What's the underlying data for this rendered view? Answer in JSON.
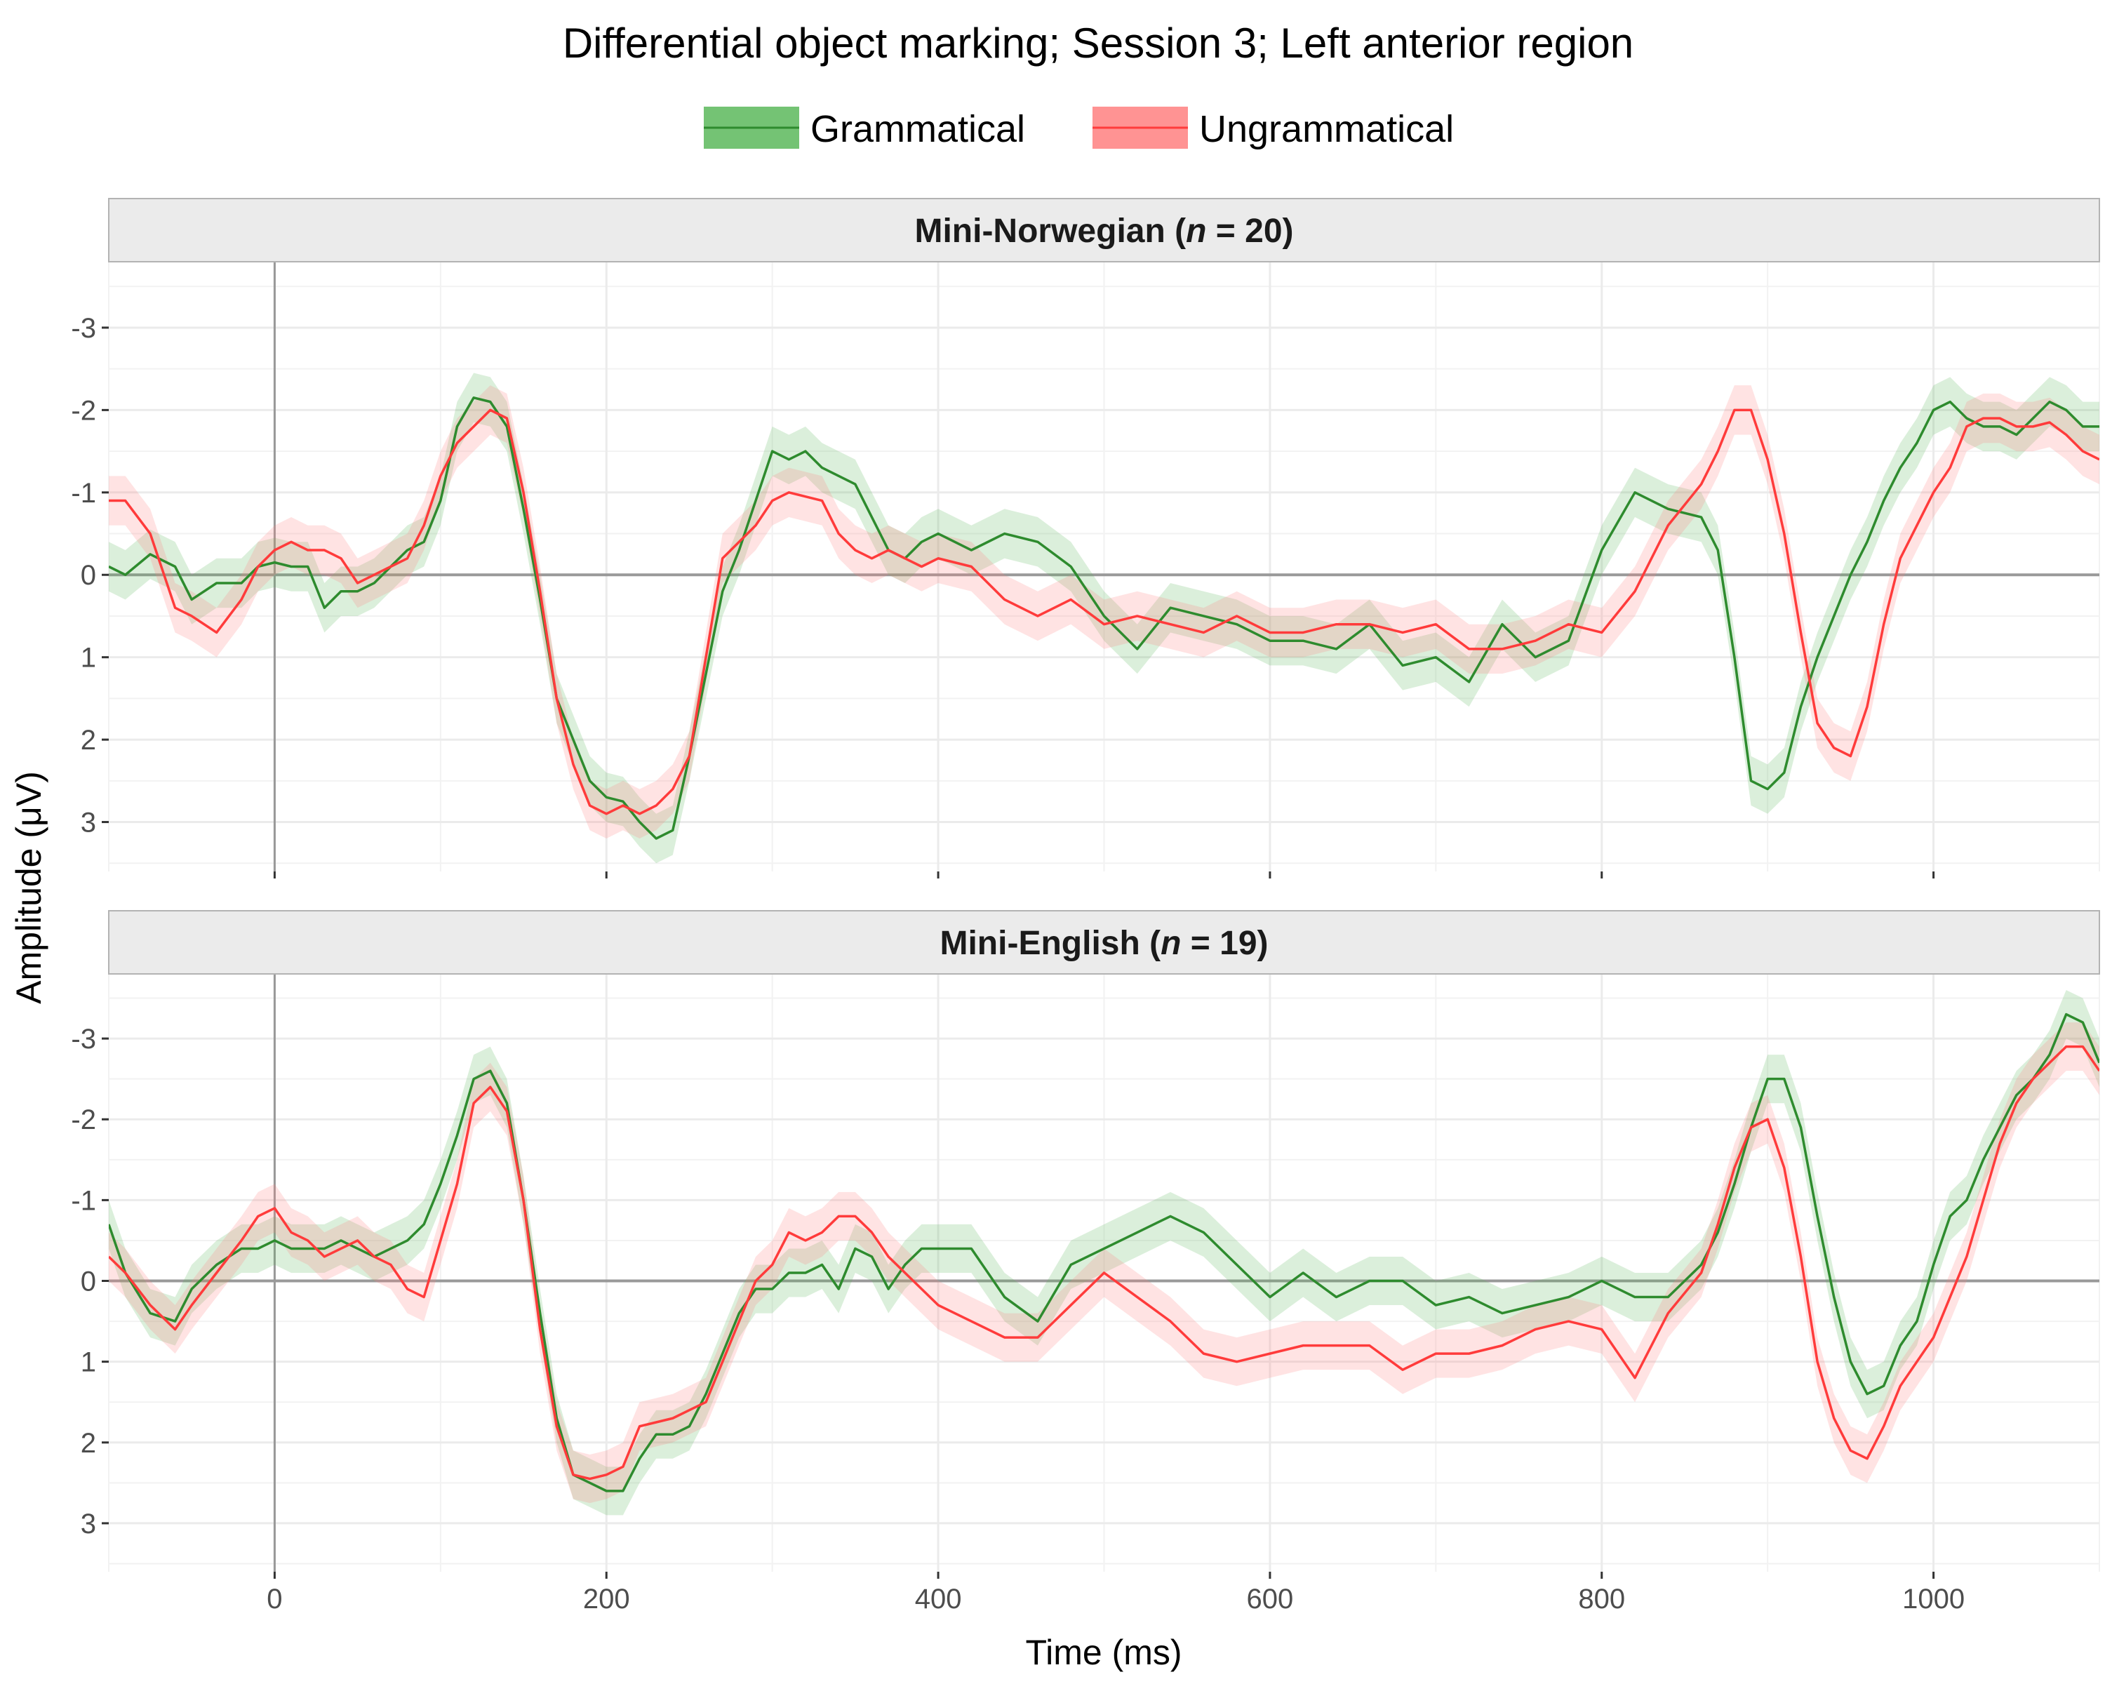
{
  "chart_data": {
    "type": "line",
    "title": "Differential object marking; Session 3; Left anterior region",
    "xlabel": "Time (ms)",
    "ylabel": "Amplitude (μV)",
    "y_reversed": true,
    "xlim": [
      -100,
      1100
    ],
    "ylim": [
      -3.8,
      3.6
    ],
    "x_ticks": [
      0,
      200,
      400,
      600,
      800,
      1000
    ],
    "x_tick_labels": [
      "0",
      "200",
      "400",
      "600",
      "800",
      "1000"
    ],
    "y_ticks": [
      -3,
      -2,
      -1,
      0,
      1,
      2,
      3
    ],
    "y_tick_labels": [
      "-3",
      "-2",
      "-1",
      "0",
      "1",
      "2",
      "3"
    ],
    "grid": true,
    "legend_position": "top",
    "legend": [
      {
        "label": "Grammatical",
        "color": "#2e8b2e",
        "ribbon_color": "#5cb85c"
      },
      {
        "label": "Ungrammatical",
        "color": "#ff3b3b",
        "ribbon_color": "#ff8080"
      }
    ],
    "panels": [
      {
        "title_before": "Mini-Norwegian (",
        "title_n": "n",
        "title_after": " = 20)",
        "series": [
          {
            "name": "Grammatical",
            "ribbon_halfwidth": 0.3,
            "x": [
              -100,
              -90,
              -75,
              -60,
              -50,
              -35,
              -20,
              -10,
              0,
              10,
              20,
              30,
              40,
              50,
              60,
              70,
              80,
              90,
              100,
              110,
              120,
              130,
              140,
              150,
              160,
              170,
              180,
              190,
              200,
              210,
              220,
              230,
              240,
              250,
              260,
              270,
              280,
              290,
              300,
              310,
              320,
              330,
              340,
              350,
              360,
              370,
              380,
              390,
              400,
              420,
              440,
              460,
              480,
              500,
              520,
              540,
              560,
              580,
              600,
              620,
              640,
              660,
              680,
              700,
              720,
              740,
              760,
              780,
              800,
              820,
              840,
              860,
              870,
              880,
              890,
              900,
              910,
              920,
              930,
              940,
              950,
              960,
              970,
              980,
              990,
              1000,
              1010,
              1020,
              1030,
              1040,
              1050,
              1060,
              1070,
              1080,
              1090,
              1100
            ],
            "y": [
              -0.1,
              0,
              -0.25,
              -0.1,
              0.3,
              0.1,
              0.1,
              -0.1,
              -0.15,
              -0.1,
              -0.1,
              0.4,
              0.2,
              0.2,
              0.1,
              -0.1,
              -0.3,
              -0.4,
              -0.9,
              -1.8,
              -2.15,
              -2.1,
              -1.8,
              -0.8,
              0.3,
              1.5,
              2.0,
              2.5,
              2.7,
              2.75,
              3.0,
              3.2,
              3.1,
              2.2,
              1.2,
              0.2,
              -0.3,
              -0.9,
              -1.5,
              -1.4,
              -1.5,
              -1.3,
              -1.2,
              -1.1,
              -0.7,
              -0.3,
              -0.2,
              -0.4,
              -0.5,
              -0.3,
              -0.5,
              -0.4,
              -0.1,
              0.5,
              0.9,
              0.4,
              0.5,
              0.6,
              0.8,
              0.8,
              0.9,
              0.6,
              1.1,
              1.0,
              1.3,
              0.6,
              1.0,
              0.8,
              -0.3,
              -1.0,
              -0.8,
              -0.7,
              -0.3,
              1.0,
              2.5,
              2.6,
              2.4,
              1.6,
              1.0,
              0.5,
              0,
              -0.4,
              -0.9,
              -1.3,
              -1.6,
              -2.0,
              -2.1,
              -1.9,
              -1.8,
              -1.8,
              -1.7,
              -1.9,
              -2.1,
              -2.0,
              -1.8,
              -1.8
            ]
          },
          {
            "name": "Ungrammatical",
            "ribbon_halfwidth": 0.3,
            "x": [
              -100,
              -90,
              -75,
              -60,
              -50,
              -35,
              -20,
              -10,
              0,
              10,
              20,
              30,
              40,
              50,
              60,
              70,
              80,
              90,
              100,
              110,
              120,
              130,
              140,
              150,
              160,
              170,
              180,
              190,
              200,
              210,
              220,
              230,
              240,
              250,
              260,
              270,
              280,
              290,
              300,
              310,
              320,
              330,
              340,
              350,
              360,
              370,
              380,
              390,
              400,
              420,
              440,
              460,
              480,
              500,
              520,
              540,
              560,
              580,
              600,
              620,
              640,
              660,
              680,
              700,
              720,
              740,
              760,
              780,
              800,
              820,
              840,
              860,
              870,
              880,
              890,
              900,
              910,
              920,
              930,
              940,
              950,
              960,
              970,
              980,
              990,
              1000,
              1010,
              1020,
              1030,
              1040,
              1050,
              1060,
              1070,
              1080,
              1090,
              1100
            ],
            "y": [
              -0.9,
              -0.9,
              -0.5,
              0.4,
              0.5,
              0.7,
              0.3,
              -0.1,
              -0.3,
              -0.4,
              -0.3,
              -0.3,
              -0.2,
              0.1,
              0,
              -0.1,
              -0.2,
              -0.6,
              -1.2,
              -1.6,
              -1.8,
              -2.0,
              -1.9,
              -1.0,
              0.2,
              1.5,
              2.3,
              2.8,
              2.9,
              2.8,
              2.9,
              2.8,
              2.6,
              2.2,
              1.0,
              -0.2,
              -0.4,
              -0.6,
              -0.9,
              -1.0,
              -0.95,
              -0.9,
              -0.5,
              -0.3,
              -0.2,
              -0.3,
              -0.2,
              -0.1,
              -0.2,
              -0.1,
              0.3,
              0.5,
              0.3,
              0.6,
              0.5,
              0.6,
              0.7,
              0.5,
              0.7,
              0.7,
              0.6,
              0.6,
              0.7,
              0.6,
              0.9,
              0.9,
              0.8,
              0.6,
              0.7,
              0.2,
              -0.6,
              -1.1,
              -1.5,
              -2.0,
              -2.0,
              -1.4,
              -0.5,
              0.7,
              1.8,
              2.1,
              2.2,
              1.6,
              0.6,
              -0.2,
              -0.6,
              -1.0,
              -1.3,
              -1.8,
              -1.9,
              -1.9,
              -1.8,
              -1.8,
              -1.85,
              -1.7,
              -1.5,
              -1.4
            ]
          }
        ]
      },
      {
        "title_before": "Mini-English (",
        "title_n": "n",
        "title_after": " = 19)",
        "series": [
          {
            "name": "Grammatical",
            "ribbon_halfwidth": 0.3,
            "x": [
              -100,
              -90,
              -75,
              -60,
              -50,
              -35,
              -20,
              -10,
              0,
              10,
              20,
              30,
              40,
              50,
              60,
              70,
              80,
              90,
              100,
              110,
              120,
              130,
              140,
              150,
              160,
              170,
              180,
              190,
              200,
              210,
              220,
              230,
              240,
              250,
              260,
              270,
              280,
              290,
              300,
              310,
              320,
              330,
              340,
              350,
              360,
              370,
              380,
              390,
              400,
              420,
              440,
              460,
              480,
              500,
              520,
              540,
              560,
              580,
              600,
              620,
              640,
              660,
              680,
              700,
              720,
              740,
              760,
              780,
              800,
              820,
              840,
              860,
              870,
              880,
              890,
              900,
              910,
              920,
              930,
              940,
              950,
              960,
              970,
              980,
              990,
              1000,
              1010,
              1020,
              1030,
              1040,
              1050,
              1060,
              1070,
              1080,
              1090,
              1100
            ],
            "y": [
              -0.7,
              -0.1,
              0.4,
              0.5,
              0.1,
              -0.2,
              -0.4,
              -0.4,
              -0.5,
              -0.4,
              -0.4,
              -0.4,
              -0.5,
              -0.4,
              -0.3,
              -0.4,
              -0.5,
              -0.7,
              -1.2,
              -1.8,
              -2.5,
              -2.6,
              -2.2,
              -1.0,
              0.4,
              1.7,
              2.4,
              2.5,
              2.6,
              2.6,
              2.2,
              1.9,
              1.9,
              1.8,
              1.4,
              0.9,
              0.4,
              0.1,
              0.1,
              -0.1,
              -0.1,
              -0.2,
              0.1,
              -0.4,
              -0.3,
              0.1,
              -0.2,
              -0.4,
              -0.4,
              -0.4,
              0.2,
              0.5,
              -0.2,
              -0.4,
              -0.6,
              -0.8,
              -0.6,
              -0.2,
              0.2,
              -0.1,
              0.2,
              0,
              0,
              0.3,
              0.2,
              0.4,
              0.3,
              0.2,
              0,
              0.2,
              0.2,
              -0.2,
              -0.6,
              -1.2,
              -1.9,
              -2.5,
              -2.5,
              -1.9,
              -0.8,
              0.2,
              1.0,
              1.4,
              1.3,
              0.8,
              0.5,
              -0.2,
              -0.8,
              -1.0,
              -1.5,
              -1.9,
              -2.3,
              -2.5,
              -2.8,
              -3.3,
              -3.2,
              -2.7
            ]
          },
          {
            "name": "Ungrammatical",
            "ribbon_halfwidth": 0.3,
            "x": [
              -100,
              -90,
              -75,
              -60,
              -50,
              -35,
              -20,
              -10,
              0,
              10,
              20,
              30,
              40,
              50,
              60,
              70,
              80,
              90,
              100,
              110,
              120,
              130,
              140,
              150,
              160,
              170,
              180,
              190,
              200,
              210,
              220,
              230,
              240,
              250,
              260,
              270,
              280,
              290,
              300,
              310,
              320,
              330,
              340,
              350,
              360,
              370,
              380,
              390,
              400,
              420,
              440,
              460,
              480,
              500,
              520,
              540,
              560,
              580,
              600,
              620,
              640,
              660,
              680,
              700,
              720,
              740,
              760,
              780,
              800,
              820,
              840,
              860,
              870,
              880,
              890,
              900,
              910,
              920,
              930,
              940,
              950,
              960,
              970,
              980,
              990,
              1000,
              1010,
              1020,
              1030,
              1040,
              1050,
              1060,
              1070,
              1080,
              1090,
              1100
            ],
            "y": [
              -0.3,
              -0.1,
              0.3,
              0.6,
              0.3,
              -0.1,
              -0.5,
              -0.8,
              -0.9,
              -0.6,
              -0.5,
              -0.3,
              -0.4,
              -0.5,
              -0.3,
              -0.2,
              0.1,
              0.2,
              -0.5,
              -1.2,
              -2.2,
              -2.4,
              -2.1,
              -1.0,
              0.6,
              1.8,
              2.4,
              2.45,
              2.4,
              2.3,
              1.8,
              1.75,
              1.7,
              1.6,
              1.5,
              1.0,
              0.5,
              0,
              -0.2,
              -0.6,
              -0.5,
              -0.6,
              -0.8,
              -0.8,
              -0.6,
              -0.3,
              -0.1,
              0.1,
              0.3,
              0.5,
              0.7,
              0.7,
              0.3,
              -0.1,
              0.2,
              0.5,
              0.9,
              1.0,
              0.9,
              0.8,
              0.8,
              0.8,
              1.1,
              0.9,
              0.9,
              0.8,
              0.6,
              0.5,
              0.6,
              1.2,
              0.4,
              -0.1,
              -0.7,
              -1.4,
              -1.9,
              -2.0,
              -1.4,
              -0.3,
              1.0,
              1.7,
              2.1,
              2.2,
              1.8,
              1.3,
              1.0,
              0.7,
              0.2,
              -0.3,
              -1.0,
              -1.7,
              -2.2,
              -2.5,
              -2.7,
              -2.9,
              -2.9,
              -2.6
            ]
          }
        ]
      }
    ]
  }
}
